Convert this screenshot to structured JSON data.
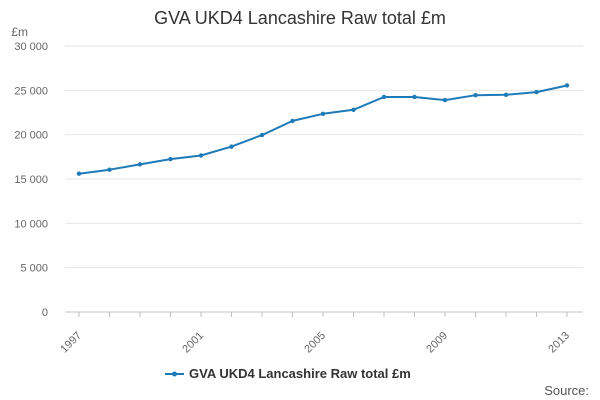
{
  "chart_data": {
    "type": "line",
    "title": "GVA UKD4 Lancashire Raw total £m",
    "unit_label": "£m",
    "x": [
      1997,
      1998,
      1999,
      2000,
      2001,
      2002,
      2003,
      2004,
      2005,
      2006,
      2007,
      2008,
      2009,
      2010,
      2011,
      2012,
      2013
    ],
    "x_tick_labels": [
      "1997",
      "2001",
      "2005",
      "2009",
      "2013"
    ],
    "y_tick_labels": [
      "0",
      "5 000",
      "10 000",
      "15 000",
      "20 000",
      "25 000",
      "30 000"
    ],
    "ylim": [
      0,
      30000
    ],
    "series": [
      {
        "name": "GVA UKD4 Lancashire Raw total £m",
        "color": "#1f7ab8",
        "values": [
          15600,
          16050,
          16650,
          17250,
          17650,
          18650,
          19950,
          21550,
          22350,
          22800,
          24250,
          24250,
          23900,
          24450,
          24500,
          24800,
          25550
        ]
      }
    ],
    "grid": true,
    "legend": "bottom-center",
    "source_label": "Source:"
  }
}
